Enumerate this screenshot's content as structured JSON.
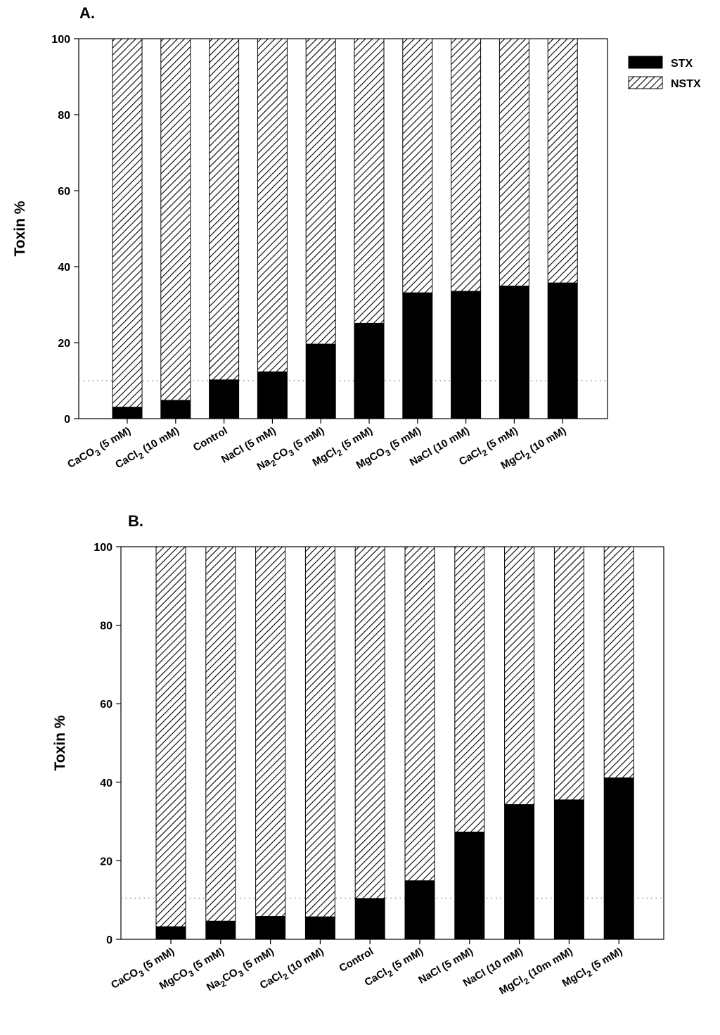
{
  "chart_data": [
    {
      "type": "bar",
      "stacked": true,
      "panel_label": "A.",
      "ylabel": "Toxin %",
      "xlabel": "",
      "ylim": [
        0,
        100
      ],
      "yticks": [
        "0",
        "20",
        "40",
        "60",
        "80",
        "100"
      ],
      "reference_line": 10,
      "legend": {
        "placement": "top-right outside",
        "entries": [
          "STX",
          "NSTX"
        ]
      },
      "categories": [
        {
          "base": "CaCO",
          "sub": "3",
          "tail": " (5 mM)"
        },
        {
          "base": "CaCl",
          "sub": "2",
          "tail": " (10 mM)"
        },
        {
          "base": "Control",
          "sub": "",
          "tail": ""
        },
        {
          "base": "NaCl (5 mM)",
          "sub": "",
          "tail": ""
        },
        {
          "base": "Na",
          "sub": "2",
          "tail": "CO",
          "sub2": "3",
          "tail2": " (5 mM)"
        },
        {
          "base": "MgCl",
          "sub": "2",
          "tail": " (5 mM)"
        },
        {
          "base": "MgCO",
          "sub": "3",
          "tail": " (5 mM)"
        },
        {
          "base": "NaCl (10 mM)",
          "sub": "",
          "tail": ""
        },
        {
          "base": "CaCl",
          "sub": "2",
          "tail": " (5 mM)"
        },
        {
          "base": "MgCl",
          "sub": "2",
          "tail": " (10 mM)"
        }
      ],
      "series": [
        {
          "name": "STX",
          "values": [
            3,
            4.8,
            10.2,
            12.3,
            19.6,
            25.1,
            33.1,
            33.5,
            34.9,
            35.7
          ]
        },
        {
          "name": "NSTX",
          "values": [
            97,
            95.2,
            89.8,
            87.7,
            80.4,
            74.9,
            66.9,
            66.5,
            65.1,
            64.3
          ]
        }
      ]
    },
    {
      "type": "bar",
      "stacked": true,
      "panel_label": "B.",
      "ylabel": "Toxin %",
      "xlabel": "",
      "ylim": [
        0,
        100
      ],
      "yticks": [
        "0",
        "20",
        "40",
        "60",
        "80",
        "100"
      ],
      "reference_line": 10.5,
      "categories": [
        {
          "base": "CaCO",
          "sub": "3",
          "tail": " (5 mM)"
        },
        {
          "base": "MgCO",
          "sub": "3",
          "tail": " (5 mM)"
        },
        {
          "base": "Na",
          "sub": "2",
          "tail": "CO",
          "sub2": "3",
          "tail2": " (5 mM)"
        },
        {
          "base": "CaCl",
          "sub": "2",
          "tail": " (10 mM)"
        },
        {
          "base": "Control",
          "sub": "",
          "tail": ""
        },
        {
          "base": "CaCl",
          "sub": "2",
          "tail": " (5 mM)"
        },
        {
          "base": "NaCl (5 mM)",
          "sub": "",
          "tail": ""
        },
        {
          "base": "NaCl (10 mM)",
          "sub": "",
          "tail": ""
        },
        {
          "base": "MgCl",
          "sub": "2",
          "tail": " (10m mM)"
        },
        {
          "base": "MgCl",
          "sub": "2",
          "tail": " (5 mM)"
        }
      ],
      "series": [
        {
          "name": "STX",
          "values": [
            3.2,
            4.6,
            5.8,
            5.7,
            10.4,
            14.9,
            27.3,
            34.3,
            35.5,
            41.1
          ]
        },
        {
          "name": "NSTX",
          "values": [
            96.8,
            95.4,
            94.2,
            94.3,
            89.6,
            85.1,
            72.7,
            65.7,
            64.5,
            58.9
          ]
        }
      ]
    }
  ]
}
